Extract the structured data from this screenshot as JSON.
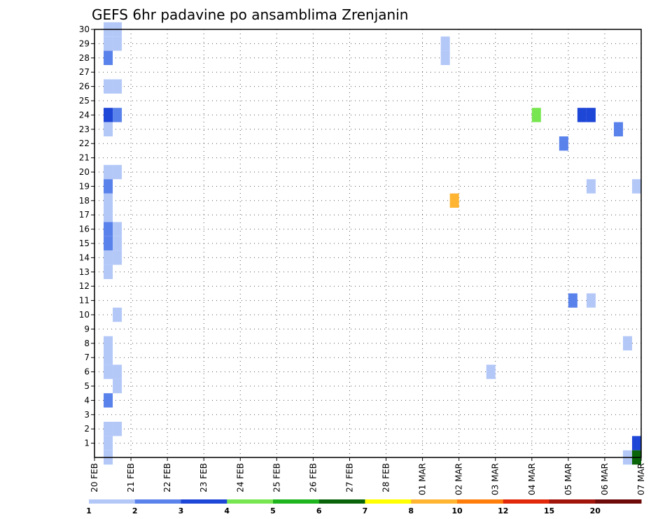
{
  "chart_data": {
    "type": "heatmap",
    "title": "GEFS 6hr padavine po ansamblima Zrenjanin",
    "xlabel": "",
    "ylabel": "",
    "x_ticks": [
      "20 FEB",
      "21 FEB",
      "22 FEB",
      "23 FEB",
      "24 FEB",
      "25 FEB",
      "26 FEB",
      "27 FEB",
      "28 FEB",
      "01 MAR",
      "02 MAR",
      "03 MAR",
      "04 MAR",
      "05 MAR",
      "06 MAR",
      "07 MAR"
    ],
    "y_ticks": [
      1,
      2,
      3,
      4,
      5,
      6,
      7,
      8,
      9,
      10,
      11,
      12,
      13,
      14,
      15,
      16,
      17,
      18,
      19,
      20,
      21,
      22,
      23,
      24,
      25,
      26,
      27,
      28,
      29,
      30
    ],
    "xlim": [
      "20 FEB",
      "07 MAR"
    ],
    "ylim": [
      0,
      30
    ],
    "grid": true,
    "legend": {
      "position": "bottom",
      "labels": [
        "1",
        "2",
        "3",
        "4",
        "5",
        "6",
        "7",
        "8",
        "10",
        "12",
        "15",
        "20"
      ],
      "colors": [
        "#b4c8f8",
        "#5a82eb",
        "#1e46d7",
        "#78e650",
        "#1eb41e",
        "#0a640a",
        "#ffff00",
        "#ffb432",
        "#ff7d0a",
        "#e1280a",
        "#a0140a",
        "#6e0a0a"
      ]
    },
    "cells": [
      {
        "member": 30,
        "day": 0.25,
        "value": 1.5
      },
      {
        "member": 30,
        "day": 0.5,
        "value": 1.5
      },
      {
        "member": 29,
        "day": 0.25,
        "value": 1.5
      },
      {
        "member": 29,
        "day": 0.5,
        "value": 1.5
      },
      {
        "member": 28,
        "day": 0.25,
        "value": 2.5
      },
      {
        "member": 26,
        "day": 0.25,
        "value": 1.5
      },
      {
        "member": 26,
        "day": 0.5,
        "value": 1.5
      },
      {
        "member": 24,
        "day": 0.25,
        "value": 3.5
      },
      {
        "member": 24,
        "day": 0.5,
        "value": 2.5
      },
      {
        "member": 23,
        "day": 0.25,
        "value": 1.5
      },
      {
        "member": 20,
        "day": 0.25,
        "value": 1.5
      },
      {
        "member": 20,
        "day": 0.5,
        "value": 1.5
      },
      {
        "member": 19,
        "day": 0.25,
        "value": 2.5
      },
      {
        "member": 18,
        "day": 0.25,
        "value": 1.5
      },
      {
        "member": 17,
        "day": 0.25,
        "value": 1.5
      },
      {
        "member": 16,
        "day": 0.25,
        "value": 2.5
      },
      {
        "member": 16,
        "day": 0.5,
        "value": 1.5
      },
      {
        "member": 15,
        "day": 0.25,
        "value": 2.5
      },
      {
        "member": 15,
        "day": 0.5,
        "value": 1.5
      },
      {
        "member": 14,
        "day": 0.25,
        "value": 1.5
      },
      {
        "member": 14,
        "day": 0.5,
        "value": 1.5
      },
      {
        "member": 13,
        "day": 0.25,
        "value": 1.5
      },
      {
        "member": 10,
        "day": 0.5,
        "value": 1.5
      },
      {
        "member": 8,
        "day": 0.25,
        "value": 1.5
      },
      {
        "member": 7,
        "day": 0.25,
        "value": 1.5
      },
      {
        "member": 6,
        "day": 0.25,
        "value": 1.5
      },
      {
        "member": 6,
        "day": 0.5,
        "value": 1.5
      },
      {
        "member": 5,
        "day": 0.5,
        "value": 1.5
      },
      {
        "member": 4,
        "day": 0.25,
        "value": 2.5
      },
      {
        "member": 2,
        "day": 0.25,
        "value": 1.5
      },
      {
        "member": 2,
        "day": 0.5,
        "value": 1.5
      },
      {
        "member": 1,
        "day": 0.25,
        "value": 1.5
      },
      {
        "member": 0,
        "day": 0.25,
        "value": 1.5
      },
      {
        "member": 29,
        "day": 9.5,
        "value": 1.5
      },
      {
        "member": 28,
        "day": 9.5,
        "value": 1.5
      },
      {
        "member": 18,
        "day": 9.75,
        "value": 9
      },
      {
        "member": 6,
        "day": 10.75,
        "value": 1.5
      },
      {
        "member": 24,
        "day": 12,
        "value": 4.5
      },
      {
        "member": 24,
        "day": 13.25,
        "value": 3.5
      },
      {
        "member": 24,
        "day": 13.5,
        "value": 3.5
      },
      {
        "member": 22,
        "day": 12.75,
        "value": 2.5
      },
      {
        "member": 23,
        "day": 14.25,
        "value": 2.5
      },
      {
        "member": 19,
        "day": 13.5,
        "value": 1.5
      },
      {
        "member": 19,
        "day": 14.75,
        "value": 1.5
      },
      {
        "member": 11,
        "day": 13,
        "value": 2.5
      },
      {
        "member": 11,
        "day": 13.5,
        "value": 1.5
      },
      {
        "member": 8,
        "day": 14.5,
        "value": 1.5
      },
      {
        "member": 0,
        "day": 14.5,
        "value": 1.5
      },
      {
        "member": 1,
        "day": 14.75,
        "value": 3.5
      },
      {
        "member": 0,
        "day": 14.75,
        "value": 6.5
      }
    ]
  }
}
